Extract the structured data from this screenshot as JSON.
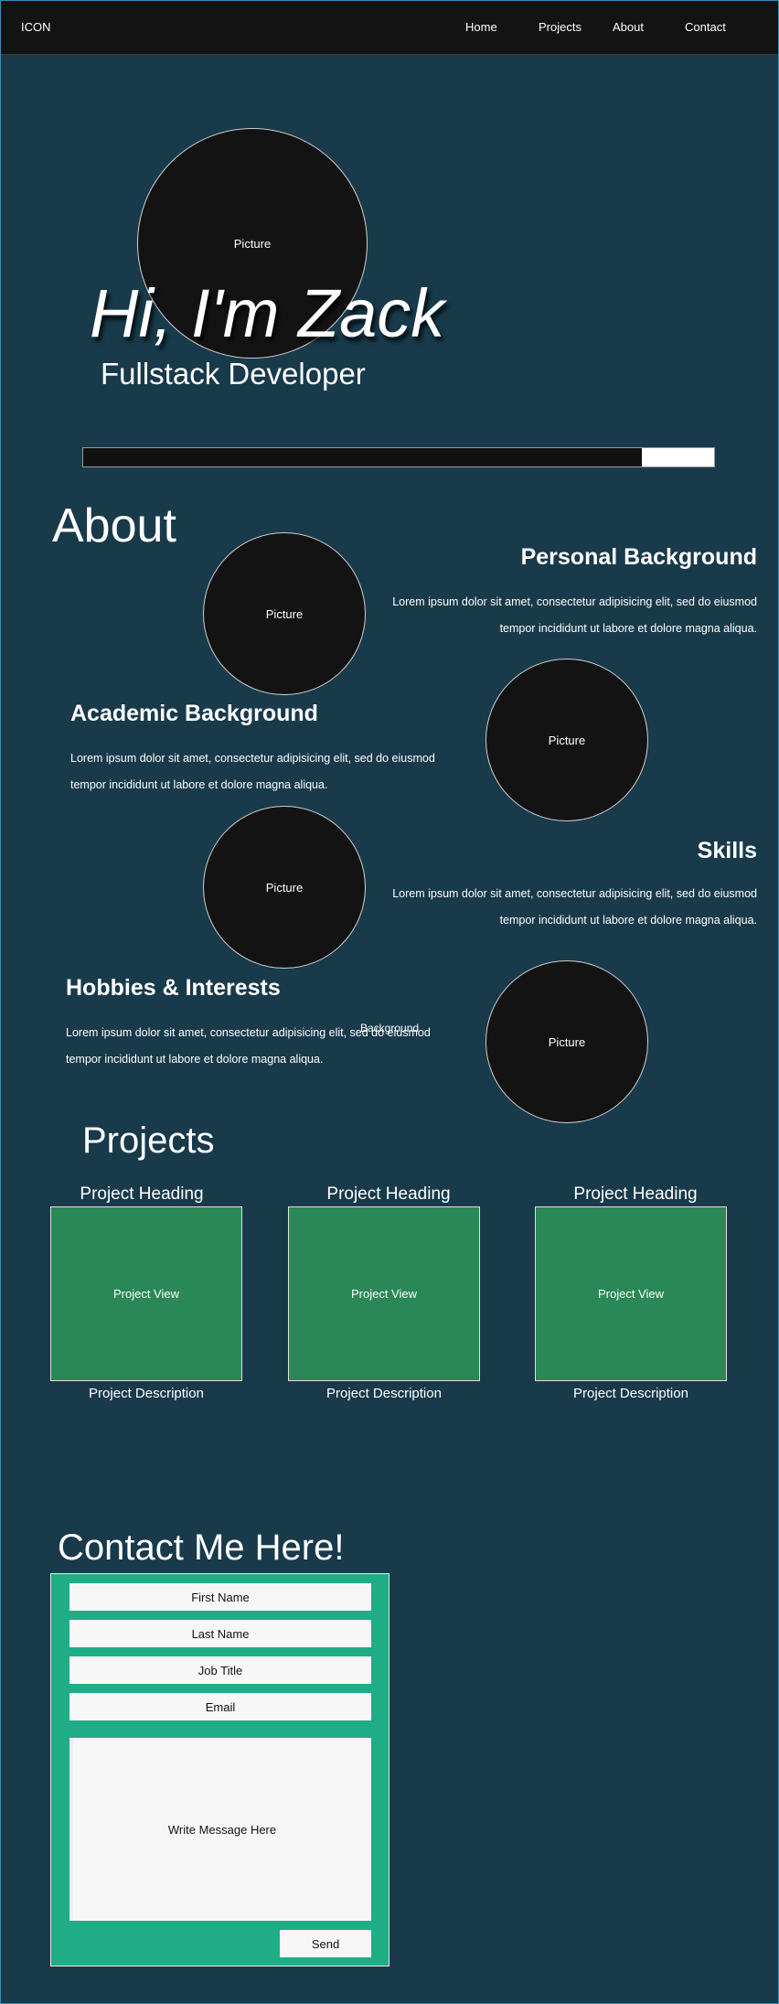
{
  "nav": {
    "logo": "ICON",
    "links": [
      "Home",
      "Projects",
      "About",
      "Contact"
    ]
  },
  "hero": {
    "picture_label": "Picture",
    "title": "Hi, I'm Zack",
    "subtitle": "Fullstack Developer",
    "progress_fraction": 0.885
  },
  "about": {
    "title": "About",
    "stray_text": "Background",
    "sections": [
      {
        "heading": "Personal Background",
        "text": "Lorem ipsum dolor sit amet, consectetur adipisicing elit, sed do eiusmod tempor incididunt ut labore et dolore magna aliqua.",
        "picture": "Picture"
      },
      {
        "heading": "Academic Background",
        "text": "Lorem ipsum dolor sit amet, consectetur adipisicing elit, sed do eiusmod tempor incididunt ut labore et dolore magna aliqua.",
        "picture": "Picture"
      },
      {
        "heading": "Skills",
        "text": "Lorem ipsum dolor sit amet, consectetur adipisicing elit, sed do eiusmod tempor incididunt ut labore et dolore magna aliqua.",
        "picture": "Picture"
      },
      {
        "heading": "Hobbies & Interests",
        "text": "Lorem ipsum dolor sit amet, consectetur adipisicing elit, sed do eiusmod tempor incididunt ut labore et dolore magna aliqua.",
        "picture": "Picture"
      }
    ]
  },
  "projects": {
    "title": "Projects",
    "items": [
      {
        "heading": "Project Heading",
        "view": "Project View",
        "description": "Project Description"
      },
      {
        "heading": "Project Heading",
        "view": "Project View",
        "description": "Project Description"
      },
      {
        "heading": "Project Heading",
        "view": "Project View",
        "description": "Project Description"
      }
    ]
  },
  "contact": {
    "title": "Contact Me Here!",
    "fields": [
      "First Name",
      "Last Name",
      "Job Title",
      "Email"
    ],
    "message_placeholder": "Write Message Here",
    "send_label": "Send"
  },
  "colors": {
    "background": "#183a4b",
    "nav": "#131313",
    "project_card": "#2a8856",
    "contact_form": "#1fad86"
  }
}
